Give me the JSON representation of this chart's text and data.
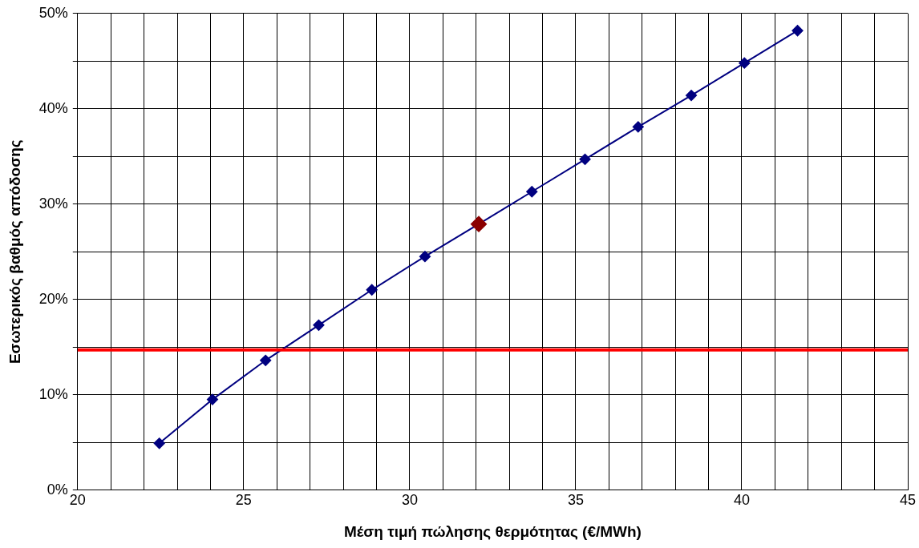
{
  "chart_data": {
    "type": "line",
    "xlabel": "Μέση τιμή πώλησης θερμότητας (€/MWh)",
    "ylabel": "Εσωτερικός βαθμός απόδοσης",
    "series": [
      {
        "color": "#000080",
        "colors": [
          "#000080",
          "#000080",
          "#000080",
          "#000080",
          "#000080",
          "#000080",
          "#8b0000",
          "#000080",
          "#000080",
          "#000080",
          "#000080",
          "#000080",
          "#000080"
        ],
        "x": [
          22.46,
          24.06,
          25.66,
          27.26,
          28.86,
          30.46,
          32.08,
          33.68,
          35.28,
          36.88,
          38.48,
          40.08,
          41.68
        ],
        "values": [
          4.9,
          9.5,
          13.6,
          17.3,
          21.0,
          24.5,
          27.9,
          31.3,
          34.7,
          38.1,
          41.4,
          44.8,
          48.2
        ]
      }
    ],
    "ref_lines": [
      {
        "axis": "y",
        "value": 14.7,
        "color": "#ff0000"
      }
    ],
    "xlim": [
      20,
      45
    ],
    "xticks": [
      20,
      {
        "value": 21,
        "label": null
      },
      {
        "value": 22,
        "label": null
      },
      {
        "value": 23,
        "label": null
      },
      {
        "value": 24,
        "label": null
      },
      25,
      {
        "value": 26,
        "label": null
      },
      {
        "value": 27,
        "label": null
      },
      {
        "value": 28,
        "label": null
      },
      {
        "value": 29,
        "label": null
      },
      30,
      {
        "value": 31,
        "label": null
      },
      {
        "value": 32,
        "label": null
      },
      {
        "value": 33,
        "label": null
      },
      {
        "value": 34,
        "label": null
      },
      35,
      {
        "value": 36,
        "label": null
      },
      {
        "value": 37,
        "label": null
      },
      {
        "value": 38,
        "label": null
      },
      {
        "value": 39,
        "label": null
      },
      40,
      {
        "value": 41,
        "label": null
      },
      {
        "value": 42,
        "label": null
      },
      {
        "value": 43,
        "label": null
      },
      {
        "value": 44,
        "label": null
      },
      45
    ],
    "ylim": [
      0,
      50
    ],
    "yticks": [
      {
        "value": 0,
        "label": "0%"
      },
      {
        "value": 5,
        "label": null
      },
      {
        "value": 10,
        "label": "10%"
      },
      {
        "value": 15,
        "label": null
      },
      {
        "value": 20,
        "label": "20%"
      },
      {
        "value": 25,
        "label": null
      },
      {
        "value": 30,
        "label": "30%"
      },
      {
        "value": 35,
        "label": null
      },
      {
        "value": 40,
        "label": "40%"
      },
      {
        "value": 45,
        "label": null
      },
      {
        "value": 50,
        "label": "50%"
      }
    ],
    "grid": true,
    "legend": false,
    "marker": "diamond",
    "line_style": "solid"
  }
}
